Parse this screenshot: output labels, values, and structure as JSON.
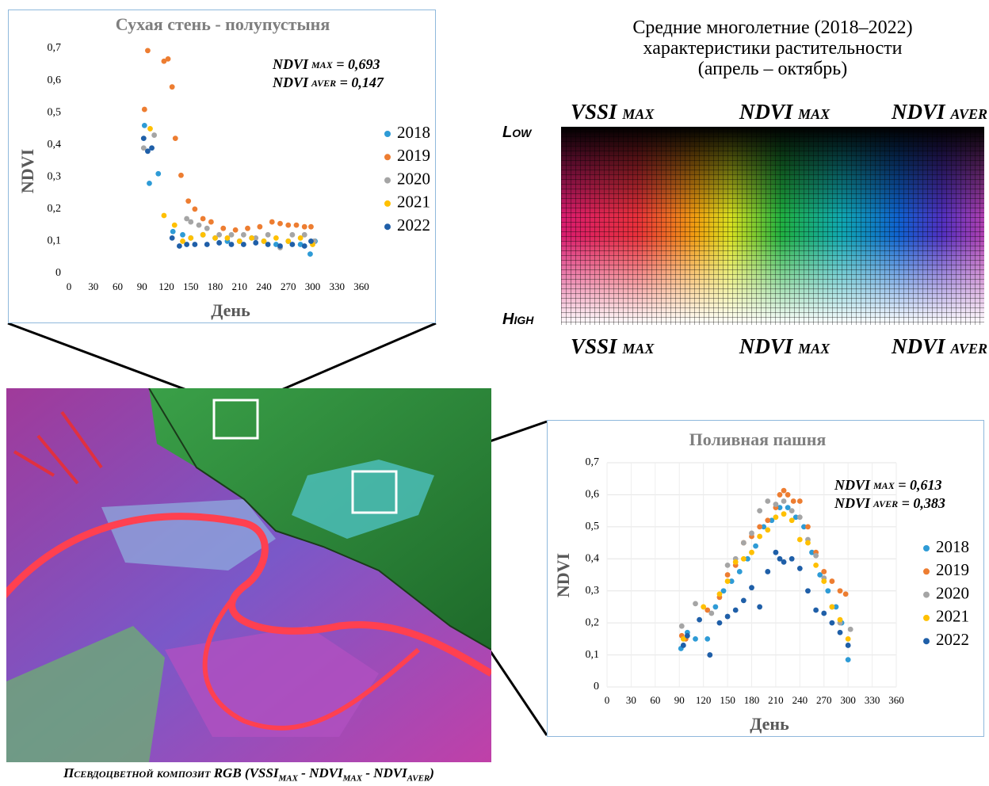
{
  "chart_data": [
    {
      "type": "scatter",
      "title": "Сухая стень - полупустыня",
      "x_label": "День",
      "y_label": "NDVI",
      "annotations": [
        {
          "name": "NDVI",
          "sub": "MAX",
          "text": " = 0,693"
        },
        {
          "name": "NDVI",
          "sub": "AVER",
          "text": " = 0,147"
        }
      ],
      "xlim": [
        0,
        360
      ],
      "xticks": [
        0,
        30,
        60,
        90,
        120,
        150,
        180,
        210,
        240,
        270,
        300,
        330,
        360
      ],
      "ylim": [
        0,
        0.7
      ],
      "yticks": [
        0,
        {
          "value": 0.1,
          "label": "0,1"
        },
        {
          "value": 0.2,
          "label": "0,2"
        },
        {
          "value": 0.3,
          "label": "0,3"
        },
        {
          "value": 0.4,
          "label": "0,4"
        },
        {
          "value": 0.5,
          "label": "0,5"
        },
        {
          "value": 0.6,
          "label": "0,6"
        },
        {
          "value": 0.7,
          "label": "0,7"
        }
      ],
      "grid": false,
      "series": [
        {
          "name": "2018",
          "color": "#2e9bd6",
          "x": [
            93,
            99,
            110,
            128,
            140,
            150,
            165,
            180,
            195,
            210,
            225,
            240,
            255,
            270,
            285,
            297,
            303
          ],
          "values": [
            0.46,
            0.28,
            0.31,
            0.13,
            0.12,
            0.11,
            0.12,
            0.11,
            0.1,
            0.1,
            0.11,
            0.1,
            0.09,
            0.1,
            0.09,
            0.06,
            0.1
          ]
        },
        {
          "name": "2019",
          "color": "#ed7d31",
          "x": [
            93,
            97,
            117,
            122,
            127,
            131,
            138,
            147,
            155,
            165,
            175,
            190,
            205,
            220,
            235,
            250,
            260,
            270,
            280,
            290,
            298
          ],
          "values": [
            0.51,
            0.693,
            0.66,
            0.667,
            0.58,
            0.42,
            0.305,
            0.225,
            0.2,
            0.17,
            0.16,
            0.14,
            0.135,
            0.14,
            0.145,
            0.16,
            0.155,
            0.15,
            0.15,
            0.145,
            0.145
          ]
        },
        {
          "name": "2020",
          "color": "#a5a5a5",
          "x": [
            92,
            105,
            145,
            150,
            160,
            170,
            185,
            200,
            215,
            230,
            245,
            260,
            275,
            290,
            302
          ],
          "values": [
            0.39,
            0.43,
            0.17,
            0.16,
            0.15,
            0.14,
            0.12,
            0.12,
            0.12,
            0.11,
            0.12,
            0.08,
            0.12,
            0.12,
            0.1
          ]
        },
        {
          "name": "2021",
          "color": "#ffc000",
          "x": [
            100,
            117,
            130,
            140,
            150,
            165,
            180,
            195,
            210,
            225,
            240,
            255,
            270,
            285,
            300
          ],
          "values": [
            0.45,
            0.18,
            0.15,
            0.1,
            0.11,
            0.12,
            0.11,
            0.11,
            0.1,
            0.11,
            0.1,
            0.11,
            0.1,
            0.11,
            0.09
          ]
        },
        {
          "name": "2022",
          "color": "#1f5fa8",
          "x": [
            92,
            97,
            102,
            127,
            136,
            145,
            155,
            170,
            185,
            200,
            215,
            230,
            245,
            260,
            275,
            290,
            298
          ],
          "values": [
            0.42,
            0.38,
            0.39,
            0.11,
            0.085,
            0.09,
            0.09,
            0.09,
            0.095,
            0.09,
            0.09,
            0.095,
            0.09,
            0.085,
            0.09,
            0.085,
            0.1
          ]
        }
      ]
    },
    {
      "type": "scatter",
      "title": "Поливная пашня",
      "x_label": "День",
      "y_label": "NDVI",
      "annotations": [
        {
          "name": "NDVI",
          "sub": "MAX",
          "text": " = 0,613"
        },
        {
          "name": "NDVI",
          "sub": "AVER",
          "text": " = 0,383"
        }
      ],
      "xlim": [
        0,
        360
      ],
      "xticks": [
        0,
        30,
        60,
        90,
        120,
        150,
        180,
        210,
        240,
        270,
        300,
        330,
        360
      ],
      "ylim": [
        0,
        0.7
      ],
      "yticks": [
        0,
        {
          "value": 0.1,
          "label": "0,1"
        },
        {
          "value": 0.2,
          "label": "0,2"
        },
        {
          "value": 0.3,
          "label": "0,3"
        },
        {
          "value": 0.4,
          "label": "0,4"
        },
        {
          "value": 0.5,
          "label": "0,5"
        },
        {
          "value": 0.6,
          "label": "0,6"
        },
        {
          "value": 0.7,
          "label": "0,7"
        }
      ],
      "grid": true,
      "series": [
        {
          "name": "2018",
          "color": "#2e9bd6",
          "x": [
            92,
            100,
            110,
            125,
            135,
            145,
            155,
            165,
            175,
            185,
            195,
            205,
            215,
            225,
            235,
            245,
            255,
            265,
            275,
            285,
            292,
            300
          ],
          "values": [
            0.12,
            0.17,
            0.15,
            0.15,
            0.25,
            0.3,
            0.33,
            0.36,
            0.4,
            0.44,
            0.5,
            0.52,
            0.56,
            0.56,
            0.53,
            0.5,
            0.42,
            0.35,
            0.3,
            0.25,
            0.2,
            0.085
          ]
        },
        {
          "name": "2019",
          "color": "#ed7d31",
          "x": [
            93,
            98,
            125,
            140,
            150,
            160,
            170,
            180,
            190,
            200,
            210,
            215,
            220,
            225,
            232,
            240,
            250,
            260,
            270,
            280,
            290,
            297
          ],
          "values": [
            0.16,
            0.15,
            0.24,
            0.28,
            0.35,
            0.38,
            0.45,
            0.47,
            0.5,
            0.52,
            0.56,
            0.6,
            0.613,
            0.6,
            0.58,
            0.58,
            0.5,
            0.42,
            0.36,
            0.33,
            0.3,
            0.29
          ]
        },
        {
          "name": "2020",
          "color": "#a5a5a5",
          "x": [
            93,
            110,
            130,
            150,
            160,
            170,
            180,
            190,
            200,
            210,
            220,
            230,
            240,
            250,
            260,
            270,
            280,
            290,
            303
          ],
          "values": [
            0.19,
            0.26,
            0.23,
            0.38,
            0.4,
            0.45,
            0.48,
            0.55,
            0.58,
            0.57,
            0.58,
            0.55,
            0.53,
            0.46,
            0.41,
            0.34,
            0.25,
            0.2,
            0.18
          ]
        },
        {
          "name": "2021",
          "color": "#ffc000",
          "x": [
            95,
            120,
            140,
            150,
            160,
            170,
            180,
            190,
            200,
            210,
            220,
            230,
            240,
            250,
            260,
            270,
            280,
            290,
            300
          ],
          "values": [
            0.15,
            0.25,
            0.29,
            0.33,
            0.39,
            0.4,
            0.42,
            0.47,
            0.49,
            0.53,
            0.54,
            0.52,
            0.46,
            0.45,
            0.38,
            0.33,
            0.25,
            0.21,
            0.15
          ]
        },
        {
          "name": "2022",
          "color": "#1f5fa8",
          "x": [
            95,
            100,
            115,
            128,
            140,
            150,
            160,
            170,
            180,
            190,
            200,
            210,
            215,
            220,
            230,
            240,
            250,
            260,
            270,
            280,
            290,
            300
          ],
          "values": [
            0.13,
            0.16,
            0.21,
            0.1,
            0.2,
            0.22,
            0.24,
            0.27,
            0.31,
            0.25,
            0.36,
            0.42,
            0.4,
            0.39,
            0.4,
            0.37,
            0.3,
            0.24,
            0.23,
            0.2,
            0.17,
            0.13
          ]
        }
      ]
    }
  ],
  "legend_panel": {
    "title": [
      "Средние многолетние (2018–2022)",
      "характеристики растительности",
      "(апрель – октябрь)"
    ],
    "low": "Low",
    "high": "High",
    "columns": [
      {
        "name": "VSSI",
        "sub": "MAX"
      },
      {
        "name": "NDVI",
        "sub": "MAX"
      },
      {
        "name": "NDVI",
        "sub": "AVER"
      }
    ]
  },
  "caption": [
    "Псевдоцветной композит RGB (VSSI",
    "MAX",
    " - NDVI",
    "MAX",
    " - NDVI",
    "AVER",
    ")"
  ]
}
